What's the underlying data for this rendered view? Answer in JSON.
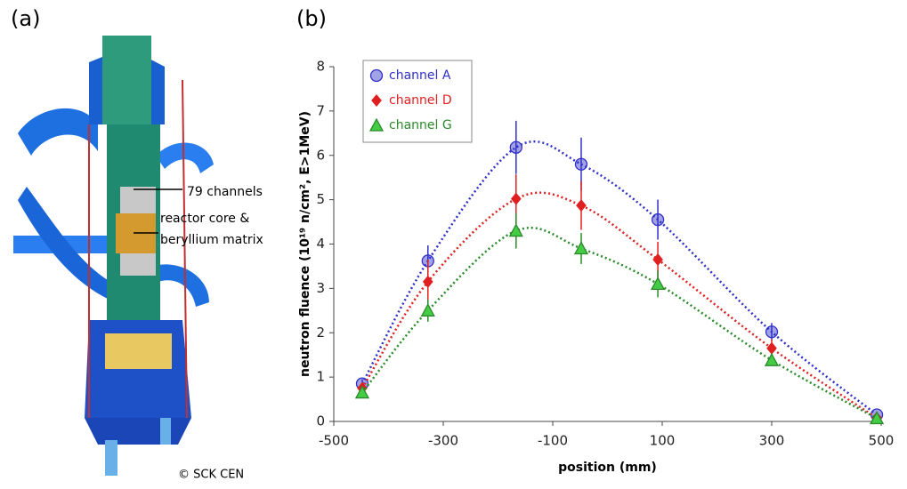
{
  "panel_labels": [
    "(a)",
    "(b)"
  ],
  "figure_a": {
    "annotations": [
      "79 channels",
      "reactor core &",
      "beryllium matrix"
    ],
    "credit": "© SCK CEN"
  },
  "chart_data": {
    "type": "scatter",
    "x_label": "position (mm)",
    "y_label": "neutron fluence (10¹⁹ n/cm², E>1MeV)",
    "xlim": [
      -500,
      500
    ],
    "xticks": [
      -500,
      -300,
      -100,
      100,
      300,
      500
    ],
    "ylim": [
      0,
      8
    ],
    "yticks": [
      0,
      1,
      2,
      3,
      4,
      5,
      6,
      7,
      8
    ],
    "legend": "top-left",
    "line_style": "dotted",
    "series": [
      {
        "name": "channel A",
        "color": "#3030c8",
        "marker": "circle",
        "x": [
          -448,
          -328,
          -167,
          -48,
          92,
          300,
          492
        ],
        "values": [
          0.85,
          3.62,
          6.18,
          5.8,
          4.55,
          2.02,
          0.15
        ],
        "errors": [
          0.1,
          0.35,
          0.6,
          0.6,
          0.45,
          0.2,
          0.05
        ]
      },
      {
        "name": "channel D",
        "color": "#e02020",
        "marker": "diamond",
        "x": [
          -448,
          -328,
          -167,
          -48,
          92,
          300,
          492
        ],
        "values": [
          0.75,
          3.15,
          5.02,
          4.87,
          3.65,
          1.65,
          0.08
        ],
        "errors": [
          0.1,
          0.5,
          0.55,
          0.55,
          0.4,
          0.2,
          0.05
        ]
      },
      {
        "name": "channel G",
        "color": "#2a8a2a",
        "marker": "triangle",
        "x": [
          -448,
          -328,
          -167,
          -48,
          92,
          300,
          492
        ],
        "values": [
          0.65,
          2.5,
          4.3,
          3.9,
          3.1,
          1.38,
          0.07
        ],
        "errors": [
          0.1,
          0.25,
          0.4,
          0.35,
          0.3,
          0.1,
          0.05
        ]
      }
    ]
  }
}
